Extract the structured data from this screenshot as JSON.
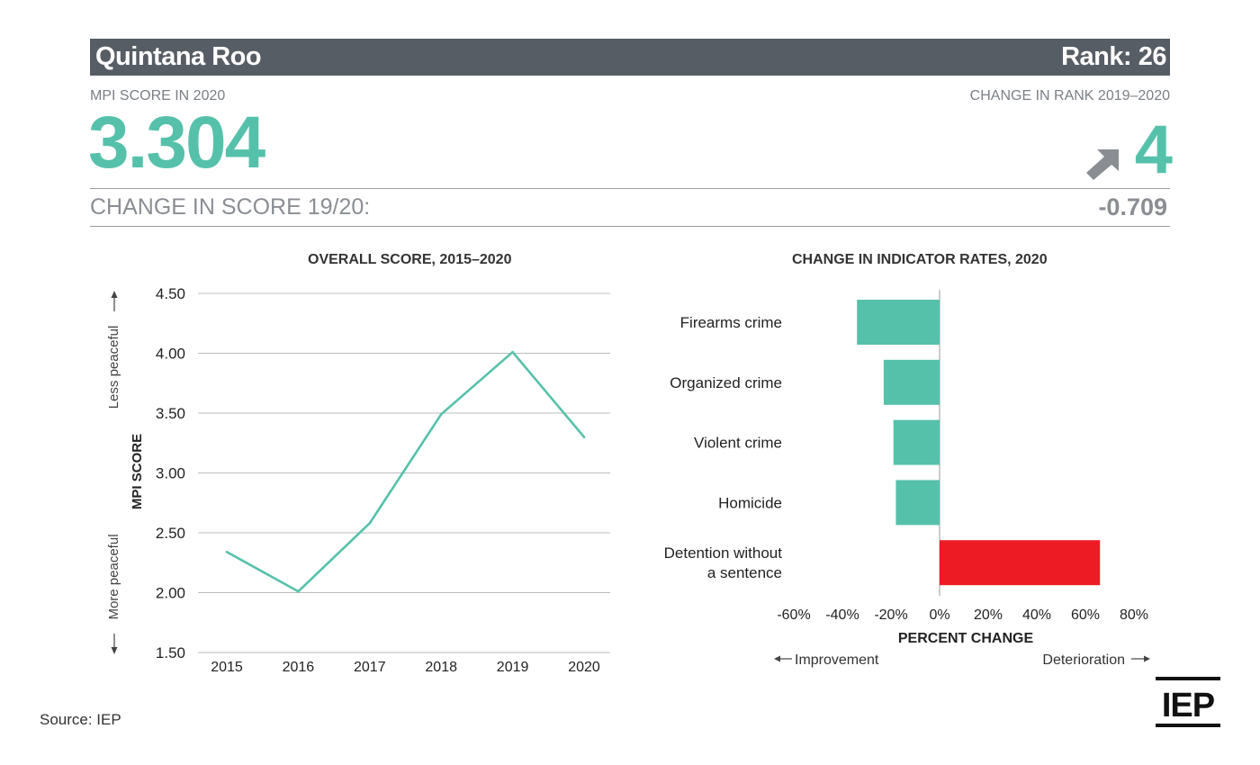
{
  "header": {
    "region": "Quintana Roo",
    "rank_label": "Rank: 26",
    "score_label": "MPI SCORE IN 2020",
    "score": "3.304",
    "rank_change_label": "CHANGE IN RANK 2019–2020",
    "rank_change": "4",
    "rank_change_icon": "arrow-up-right-icon",
    "score_change_label": "CHANGE IN SCORE 19/20:",
    "score_change": "-0.709"
  },
  "colors": {
    "banner": "#565d65",
    "accent": "#56c1aa",
    "deterioration": "#ed1c24"
  },
  "chart_data": [
    {
      "type": "line",
      "title": "OVERALL SCORE, 2015–2020",
      "ylabel": "MPI SCORE",
      "y_up_note": "Less peaceful",
      "y_down_note": "More peaceful",
      "x": [
        "2015",
        "2016",
        "2017",
        "2018",
        "2019",
        "2020"
      ],
      "series": [
        {
          "values": [
            2.34,
            2.01,
            2.58,
            3.49,
            4.01,
            3.3
          ]
        }
      ],
      "yticks": [
        "4.50",
        "4.00",
        "3.50",
        "3.00",
        "2.50",
        "2.00",
        "1.50"
      ],
      "ylim": [
        1.5,
        4.5
      ],
      "grid": true
    },
    {
      "type": "bar",
      "orientation": "horizontal",
      "title": "CHANGE IN INDICATOR RATES, 2020",
      "xlabel": "PERCENT CHANGE",
      "left_note": "Improvement",
      "right_note": "Deterioration",
      "categories": [
        "Firearms crime",
        "Organized crime",
        "Violent crime",
        "Homicide",
        "Detention without a sentence"
      ],
      "category_lines": [
        [
          "Firearms crime"
        ],
        [
          "Organized crime"
        ],
        [
          "Violent crime"
        ],
        [
          "Homicide"
        ],
        [
          "Detention without",
          "a sentence"
        ]
      ],
      "values": [
        -34,
        -23,
        -19,
        -18,
        66
      ],
      "xticks": [
        "-60%",
        "-40%",
        "-20%",
        "0%",
        "20%",
        "40%",
        "60%",
        "80%"
      ],
      "xlim": [
        -60,
        80
      ]
    }
  ],
  "footer": {
    "source": "Source: IEP",
    "logo": "IEP"
  }
}
